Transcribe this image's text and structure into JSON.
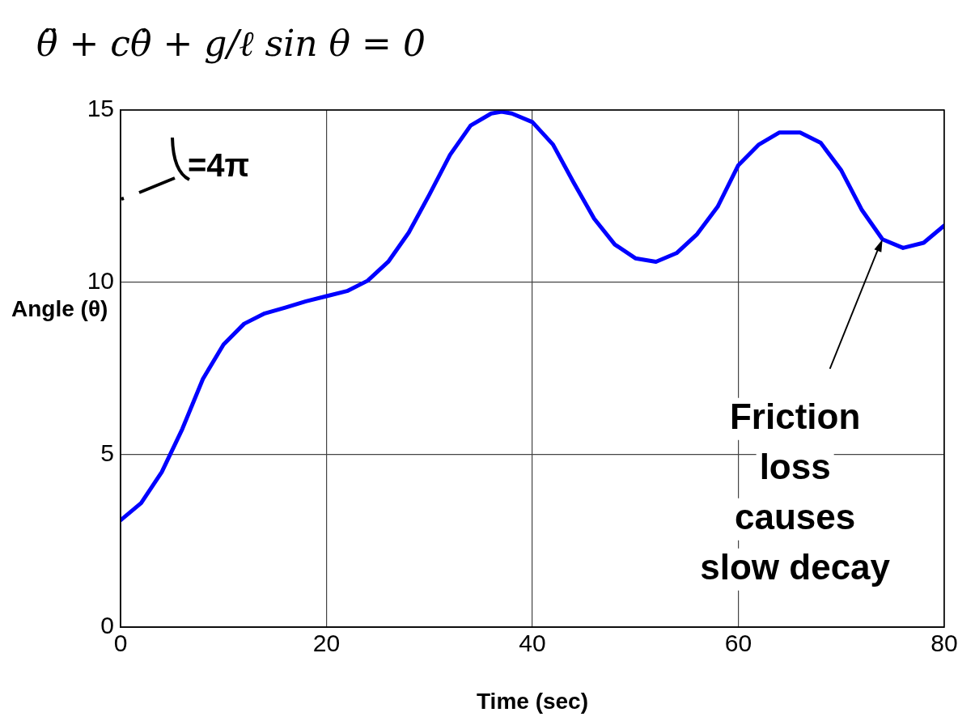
{
  "chart_data": {
    "type": "line",
    "title": "θ̈ + cθ̇ + g/ℓ sin θ = 0",
    "xlabel": "Time (sec)",
    "ylabel": "Angle (θ)",
    "x": [
      0,
      2,
      4,
      6,
      8,
      10,
      12,
      14,
      16,
      18,
      20,
      22,
      24,
      26,
      28,
      30,
      32,
      34,
      36,
      37,
      38,
      40,
      42,
      44,
      46,
      48,
      50,
      52,
      54,
      56,
      58,
      60,
      62,
      64,
      66,
      68,
      70,
      72,
      74,
      76,
      78,
      80
    ],
    "series": [
      {
        "color": "#0000ff",
        "values": [
          3.1,
          3.6,
          4.5,
          5.75,
          7.2,
          8.2,
          8.8,
          9.1,
          9.27,
          9.45,
          9.6,
          9.75,
          10.05,
          10.6,
          11.45,
          12.55,
          13.7,
          14.55,
          14.9,
          14.95,
          14.9,
          14.65,
          14.0,
          12.9,
          11.85,
          11.1,
          10.7,
          10.6,
          10.85,
          11.4,
          12.2,
          13.4,
          14.0,
          14.35,
          14.35,
          14.05,
          13.25,
          12.1,
          11.25,
          11.0,
          11.15,
          11.65
        ]
      }
    ],
    "xlim": [
      0,
      80
    ],
    "xticks": [
      0,
      20,
      40,
      60,
      80
    ],
    "ylim": [
      0,
      15
    ],
    "yticks": [
      0,
      5,
      10,
      15
    ],
    "grid": true,
    "legend": false,
    "marker": "none",
    "line_style": "solid",
    "annotations": [
      "=4π",
      {
        "text": "Friction\nloss\ncauses\nslow decay",
        "x": 74,
        "y": 11.25
      }
    ]
  }
}
